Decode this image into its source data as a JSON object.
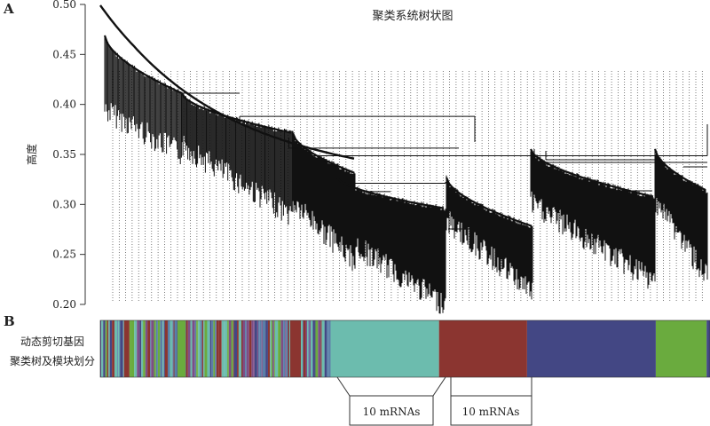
{
  "panel_a_label": "A",
  "panel_b_label": "B",
  "chart_data": {
    "type": "dendrogram",
    "title": "聚类系统树状图",
    "ylabel": "高度",
    "ylim": [
      0.2,
      0.5
    ],
    "yticks": [
      "0.20",
      "0.25",
      "0.30",
      "0.35",
      "0.40",
      "0.45",
      "0.50"
    ],
    "ytick_values": [
      0.2,
      0.25,
      0.3,
      0.35,
      0.4,
      0.45,
      0.5
    ],
    "top_merge_height": 0.495,
    "module_merge_heights": [
      0.388,
      0.367,
      0.362,
      0.358,
      0.355,
      0.33,
      0.327
    ],
    "grid": false,
    "color_bar": {
      "label_line1": "动态剪切基因",
      "label_line2": "聚类树及模块划分",
      "modules": [
        {
          "name": "mixed",
          "color": "mixed",
          "fraction": 0.34
        },
        {
          "name": "teal",
          "color": "#6cbcae",
          "fraction": 0.16
        },
        {
          "name": "red",
          "color": "#8b3530",
          "fraction": 0.13
        },
        {
          "name": "blue",
          "color": "#434784",
          "fraction": 0.19
        },
        {
          "name": "green",
          "color": "#6aab3e",
          "fraction": 0.075
        },
        {
          "name": "blue-tail",
          "color": "#434784",
          "fraction": 0.005
        }
      ],
      "mixed_palette": [
        "#6cbcae",
        "#434784",
        "#8b3530",
        "#6aab3e",
        "#5a7fa8",
        "#7d4e86"
      ]
    },
    "zoom_boxes": [
      {
        "label": "10 mRNAs",
        "module": "teal"
      },
      {
        "label": "10 mRNAs",
        "module": "red"
      }
    ]
  }
}
